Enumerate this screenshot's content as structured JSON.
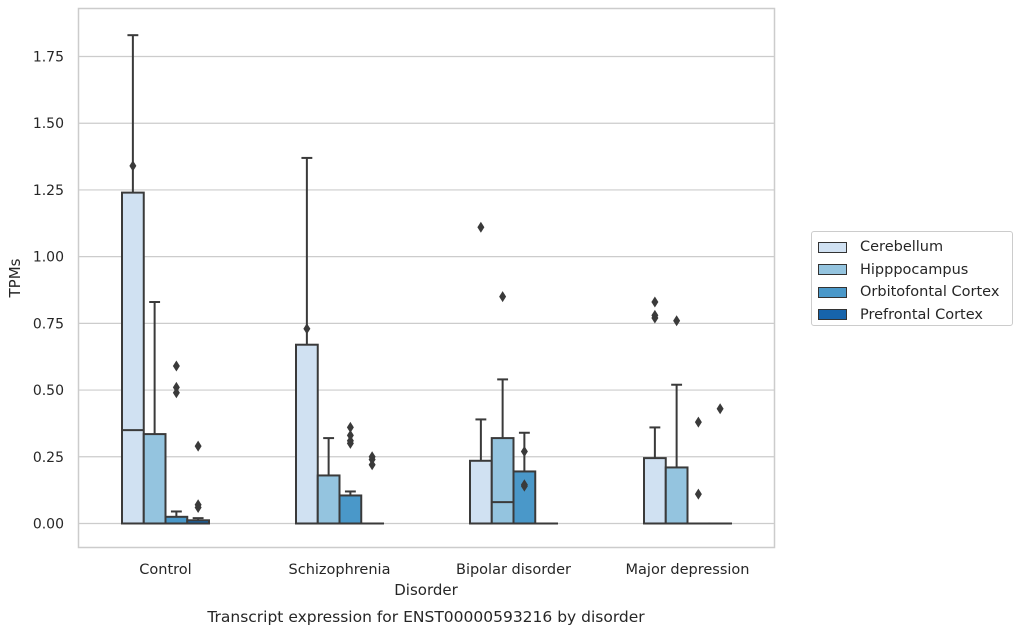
{
  "chart_data": {
    "type": "box",
    "title": "Transcript expression for ENST00000593216 by disorder",
    "xlabel": "Disorder",
    "ylabel": "TPMs",
    "ylim": [
      -0.09,
      1.93
    ],
    "yticks": [
      "0.00",
      "0.25",
      "0.50",
      "0.75",
      "1.00",
      "1.25",
      "1.50",
      "1.75"
    ],
    "grid": "horizontal",
    "legend_placement": "right",
    "categories": [
      "Control",
      "Schizophrenia",
      "Bipolar disorder",
      "Major depression"
    ],
    "series": [
      {
        "name": "Cerebellum",
        "color": "#d0e1f2",
        "boxes": [
          {
            "q1": 0,
            "median": 0.35,
            "q3": 1.24,
            "whisker_low": 0,
            "whisker_high": 1.83,
            "outliers": [
              1.34
            ]
          },
          {
            "q1": 0,
            "median": 0,
            "q3": 0.67,
            "whisker_low": 0,
            "whisker_high": 1.37,
            "outliers": [
              0.73
            ]
          },
          {
            "q1": 0,
            "median": 0,
            "q3": 0.235,
            "whisker_low": 0,
            "whisker_high": 0.39,
            "outliers": [
              1.11
            ]
          },
          {
            "q1": 0,
            "median": 0,
            "q3": 0.245,
            "whisker_low": 0,
            "whisker_high": 0.36,
            "outliers": [
              0.83,
              0.78,
              0.77
            ]
          }
        ]
      },
      {
        "name": "Hipppocampus",
        "color": "#94c4df",
        "boxes": [
          {
            "q1": 0,
            "median": 0,
            "q3": 0.335,
            "whisker_low": 0,
            "whisker_high": 0.83,
            "outliers": []
          },
          {
            "q1": 0,
            "median": 0,
            "q3": 0.18,
            "whisker_low": 0,
            "whisker_high": 0.32,
            "outliers": []
          },
          {
            "q1": 0,
            "median": 0.08,
            "q3": 0.32,
            "whisker_low": 0,
            "whisker_high": 0.54,
            "outliers": [
              0.85
            ]
          },
          {
            "q1": 0,
            "median": 0,
            "q3": 0.21,
            "whisker_low": 0,
            "whisker_high": 0.52,
            "outliers": [
              0.76
            ]
          }
        ]
      },
      {
        "name": "Orbitofontal Cortex",
        "color": "#4a98c9",
        "boxes": [
          {
            "q1": 0,
            "median": 0,
            "q3": 0.025,
            "whisker_low": 0,
            "whisker_high": 0.045,
            "outliers": [
              0.59,
              0.51,
              0.49
            ]
          },
          {
            "q1": 0,
            "median": 0,
            "q3": 0.105,
            "whisker_low": 0,
            "whisker_high": 0.12,
            "outliers": [
              0.36,
              0.33,
              0.31,
              0.3
            ]
          },
          {
            "q1": 0,
            "median": 0,
            "q3": 0.195,
            "whisker_low": 0,
            "whisker_high": 0.34,
            "outliers": [
              0.27,
              0.145,
              0.14
            ]
          },
          {
            "q1": 0,
            "median": 0,
            "q3": 0,
            "whisker_low": 0,
            "whisker_high": 0,
            "outliers": [
              0.38,
              0.11
            ]
          }
        ]
      },
      {
        "name": "Prefrontal Cortex",
        "color": "#1764ab",
        "boxes": [
          {
            "q1": 0,
            "median": 0,
            "q3": 0.012,
            "whisker_low": 0,
            "whisker_high": 0.02,
            "outliers": [
              0.29,
              0.07,
              0.06
            ]
          },
          {
            "q1": 0,
            "median": 0,
            "q3": 0,
            "whisker_low": 0,
            "whisker_high": 0,
            "outliers": [
              0.25,
              0.24,
              0.22
            ]
          },
          {
            "q1": 0,
            "median": 0,
            "q3": 0,
            "whisker_low": 0,
            "whisker_high": 0,
            "outliers": []
          },
          {
            "q1": 0,
            "median": 0,
            "q3": 0,
            "whisker_low": 0,
            "whisker_high": 0,
            "outliers": [
              0.43
            ]
          }
        ]
      }
    ]
  },
  "legend": {
    "items": [
      {
        "label": "Cerebellum",
        "color": "#d0e1f2"
      },
      {
        "label": "Hipppocampus",
        "color": "#94c4df"
      },
      {
        "label": "Orbitofontal Cortex",
        "color": "#4a98c9"
      },
      {
        "label": "Prefrontal Cortex",
        "color": "#1764ab"
      }
    ]
  }
}
